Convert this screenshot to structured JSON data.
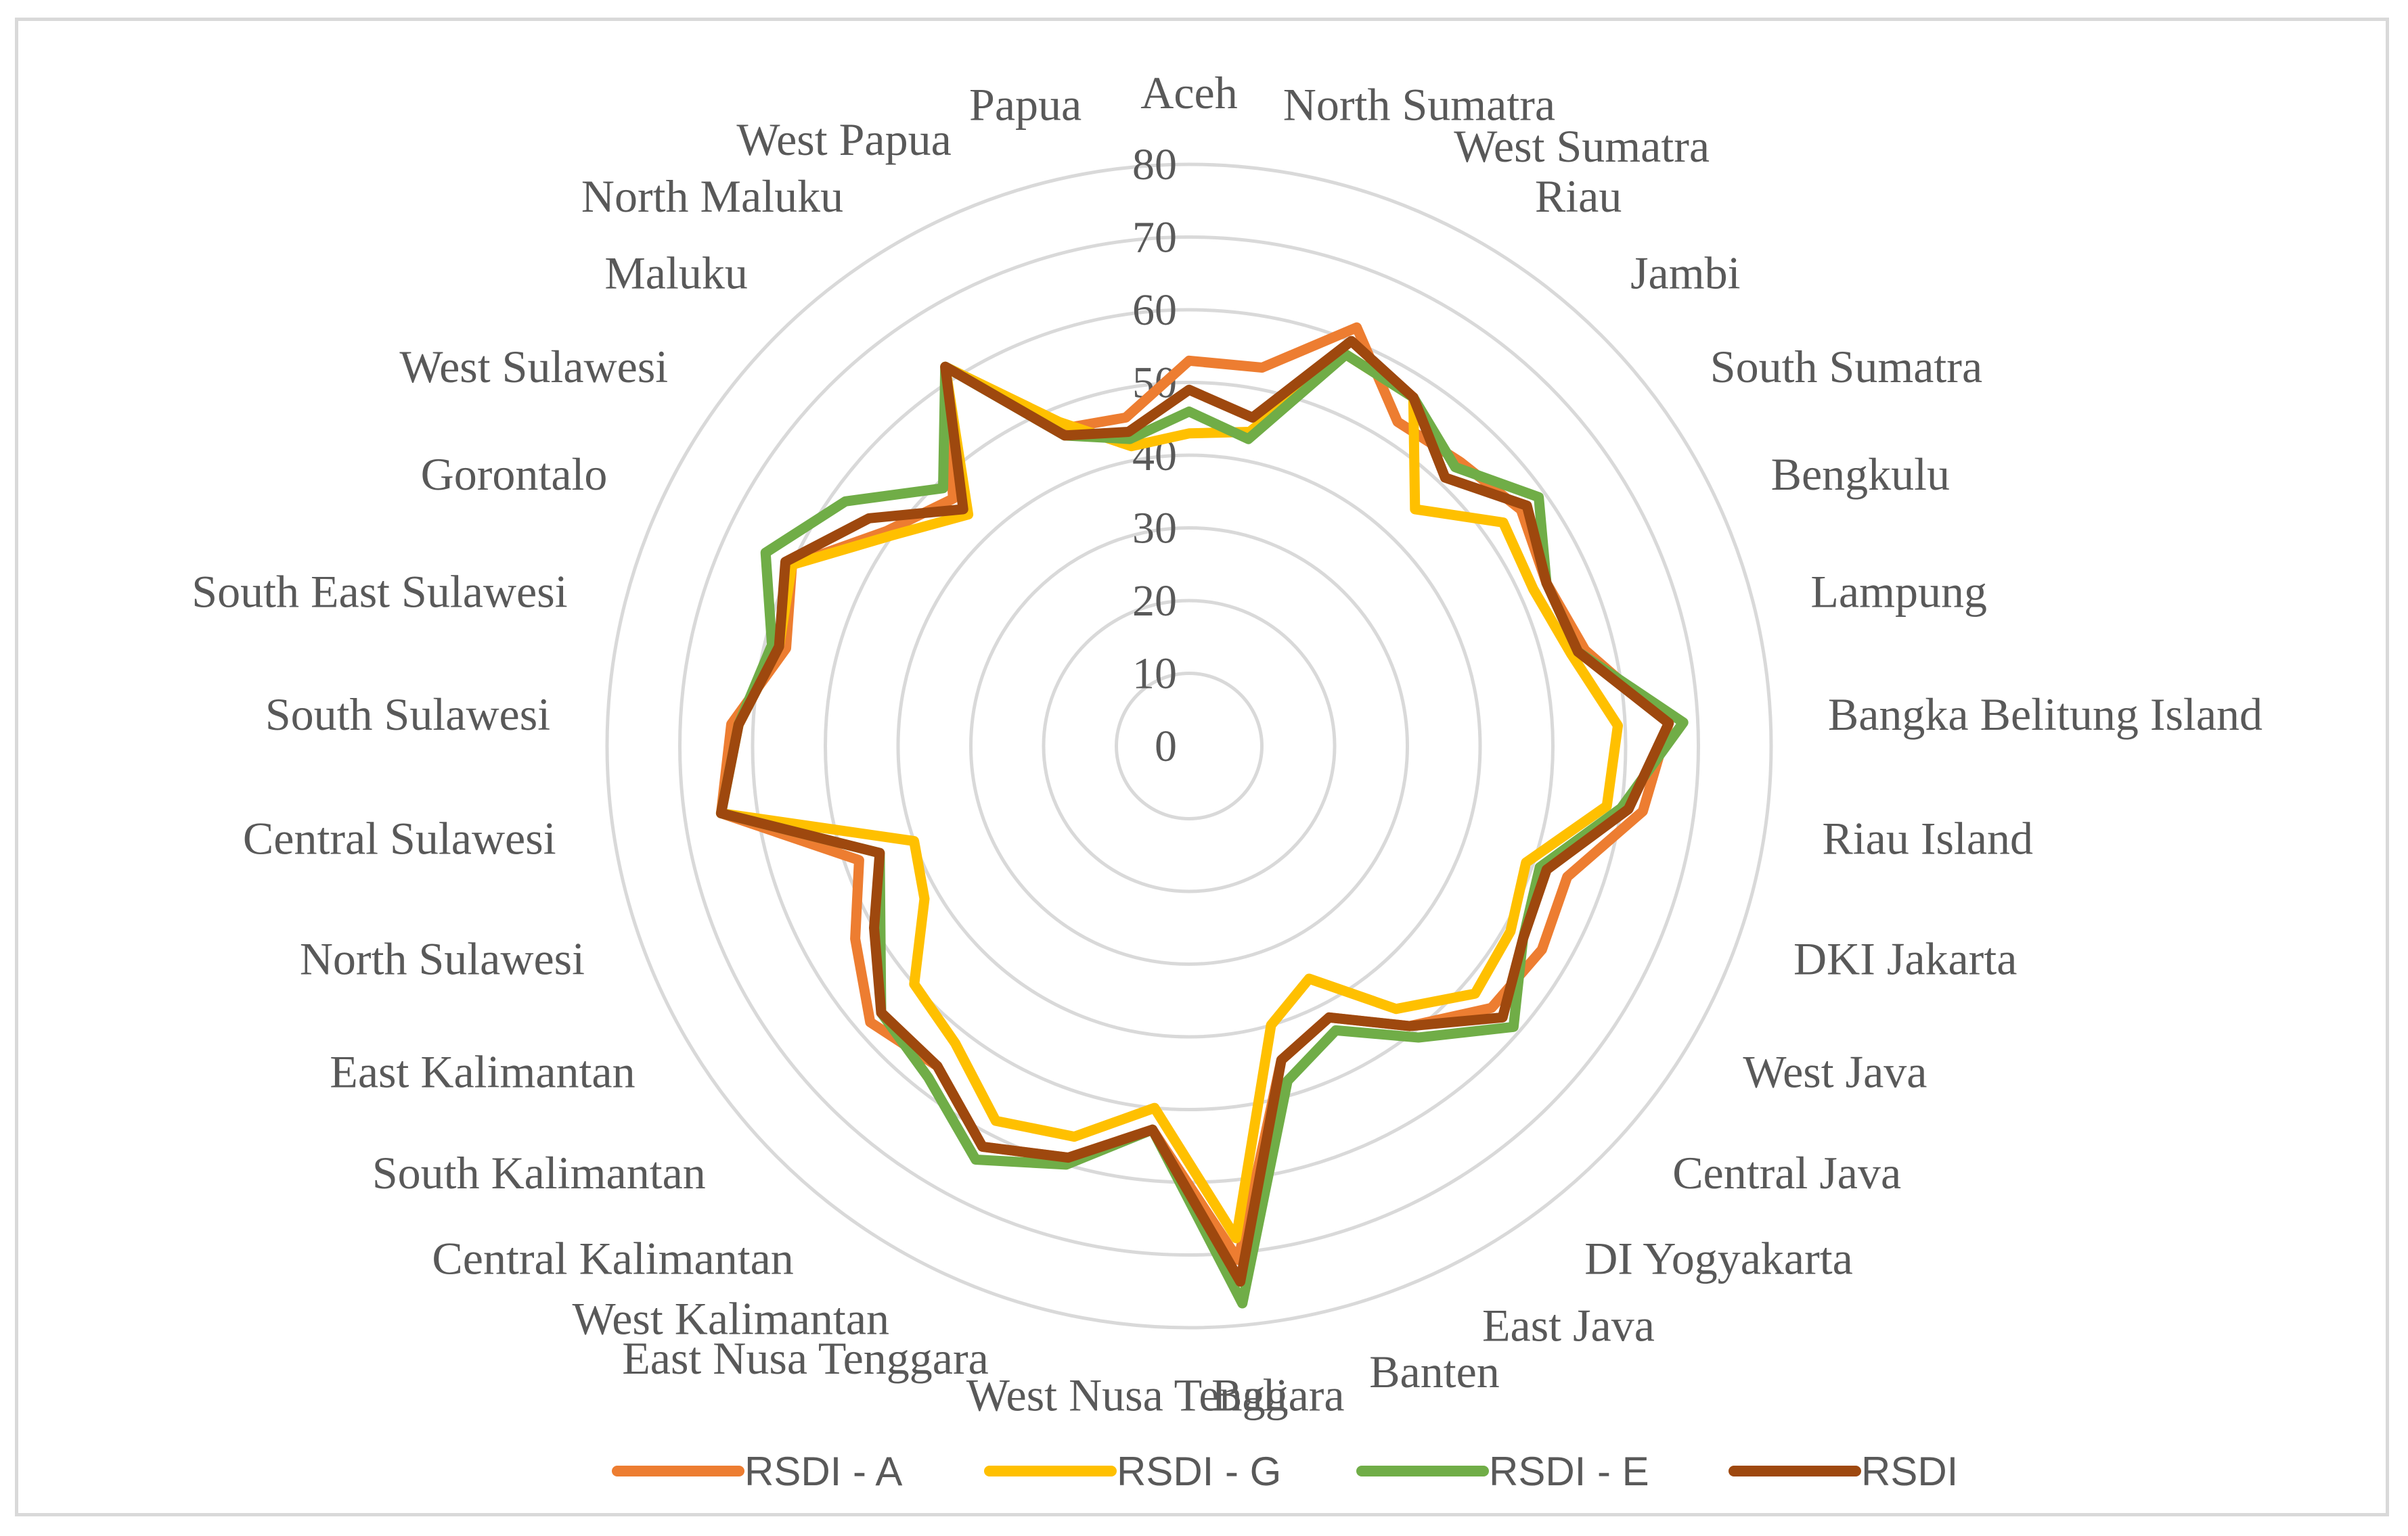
{
  "chart_data": {
    "type": "radar",
    "title": "",
    "categories": [
      "Aceh",
      "North Sumatra",
      "West Sumatra",
      "Riau",
      "Jambi",
      "South Sumatra",
      "Bengkulu",
      "Lampung",
      "Bangka Belitung Island",
      "Riau Island",
      "DKI Jakarta",
      "West Java",
      "Central Java",
      "DI Yogyakarta",
      "East Java",
      "Banten",
      "Bali",
      "West Nusa Tenggara",
      "East Nusa Tenggara",
      "West Kalimantan",
      "Central Kalimantan",
      "South Kalimantan",
      "East Kalimantan",
      "North Sulawesi",
      "Central Sulawesi",
      "South Sulawesi",
      "South East Sulawesi",
      "Gorontalo",
      "West Sulawesi",
      "Maluku",
      "North Maluku",
      "West Papua",
      "Papua"
    ],
    "rlim": [
      0,
      80
    ],
    "ticks": [
      0,
      10,
      20,
      30,
      40,
      50,
      60,
      70,
      80
    ],
    "grid": true,
    "legend_position": "bottom",
    "series": [
      {
        "name": "RSDI - A",
        "color": "#ED7D31",
        "values": [
          53,
          53,
          62,
          53,
          54,
          56,
          54,
          56,
          66,
          63,
          55,
          56,
          55,
          49,
          42,
          45,
          71,
          53,
          59,
          62,
          56,
          58,
          53,
          48,
          65,
          63,
          57,
          60,
          51,
          47,
          62,
          47,
          46
        ]
      },
      {
        "name": "RSDI - G",
        "color": "#FFC000",
        "values": [
          43,
          44,
          58,
          57,
          45,
          53,
          52,
          54,
          59,
          58,
          49,
          51,
          52,
          46,
          36,
          40,
          68,
          50,
          56,
          58,
          52,
          50,
          42,
          40,
          65,
          62,
          58,
          60,
          50,
          44,
          62,
          48,
          42
        ]
      },
      {
        "name": "RSDI - E",
        "color": "#70AD47",
        "values": [
          46,
          43,
          58,
          57,
          53,
          59,
          54,
          55,
          68,
          60,
          51,
          53,
          59,
          51,
          44,
          48,
          77,
          53,
          60,
          64,
          58,
          56,
          49,
          45,
          65,
          62,
          59,
          64,
          58,
          49,
          62,
          46,
          43
        ]
      },
      {
        "name": "RSDI",
        "color": "#9E480E",
        "values": [
          49,
          46,
          60,
          57,
          51,
          57,
          54,
          55,
          66,
          61,
          52,
          53,
          57,
          49,
          42,
          45,
          74,
          53,
          59,
          62,
          56,
          56,
          50,
          45,
          65,
          62,
          58,
          61,
          54,
          45,
          62,
          46,
          44
        ]
      }
    ]
  }
}
